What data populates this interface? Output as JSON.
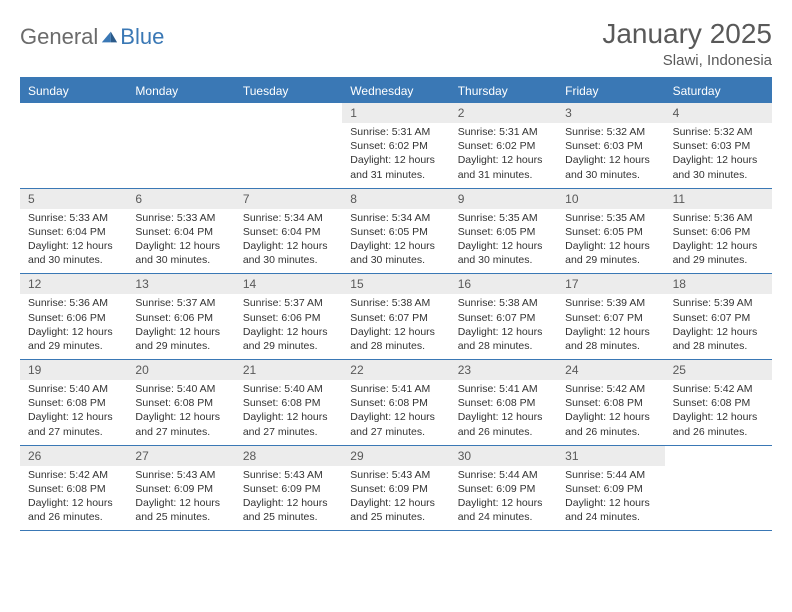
{
  "logo": {
    "text1": "General",
    "text2": "Blue"
  },
  "title": "January 2025",
  "location": "Slawi, Indonesia",
  "colors": {
    "brand_blue": "#3a78b5",
    "header_text": "#595959",
    "day_bg": "#ececec",
    "body_text": "#333333",
    "white": "#ffffff"
  },
  "weekdays": [
    "Sunday",
    "Monday",
    "Tuesday",
    "Wednesday",
    "Thursday",
    "Friday",
    "Saturday"
  ],
  "weeks": [
    [
      {
        "empty": true
      },
      {
        "empty": true
      },
      {
        "empty": true
      },
      {
        "n": "1",
        "sunrise": "Sunrise: 5:31 AM",
        "sunset": "Sunset: 6:02 PM",
        "daylight1": "Daylight: 12 hours",
        "daylight2": "and 31 minutes."
      },
      {
        "n": "2",
        "sunrise": "Sunrise: 5:31 AM",
        "sunset": "Sunset: 6:02 PM",
        "daylight1": "Daylight: 12 hours",
        "daylight2": "and 31 minutes."
      },
      {
        "n": "3",
        "sunrise": "Sunrise: 5:32 AM",
        "sunset": "Sunset: 6:03 PM",
        "daylight1": "Daylight: 12 hours",
        "daylight2": "and 30 minutes."
      },
      {
        "n": "4",
        "sunrise": "Sunrise: 5:32 AM",
        "sunset": "Sunset: 6:03 PM",
        "daylight1": "Daylight: 12 hours",
        "daylight2": "and 30 minutes."
      }
    ],
    [
      {
        "n": "5",
        "sunrise": "Sunrise: 5:33 AM",
        "sunset": "Sunset: 6:04 PM",
        "daylight1": "Daylight: 12 hours",
        "daylight2": "and 30 minutes."
      },
      {
        "n": "6",
        "sunrise": "Sunrise: 5:33 AM",
        "sunset": "Sunset: 6:04 PM",
        "daylight1": "Daylight: 12 hours",
        "daylight2": "and 30 minutes."
      },
      {
        "n": "7",
        "sunrise": "Sunrise: 5:34 AM",
        "sunset": "Sunset: 6:04 PM",
        "daylight1": "Daylight: 12 hours",
        "daylight2": "and 30 minutes."
      },
      {
        "n": "8",
        "sunrise": "Sunrise: 5:34 AM",
        "sunset": "Sunset: 6:05 PM",
        "daylight1": "Daylight: 12 hours",
        "daylight2": "and 30 minutes."
      },
      {
        "n": "9",
        "sunrise": "Sunrise: 5:35 AM",
        "sunset": "Sunset: 6:05 PM",
        "daylight1": "Daylight: 12 hours",
        "daylight2": "and 30 minutes."
      },
      {
        "n": "10",
        "sunrise": "Sunrise: 5:35 AM",
        "sunset": "Sunset: 6:05 PM",
        "daylight1": "Daylight: 12 hours",
        "daylight2": "and 29 minutes."
      },
      {
        "n": "11",
        "sunrise": "Sunrise: 5:36 AM",
        "sunset": "Sunset: 6:06 PM",
        "daylight1": "Daylight: 12 hours",
        "daylight2": "and 29 minutes."
      }
    ],
    [
      {
        "n": "12",
        "sunrise": "Sunrise: 5:36 AM",
        "sunset": "Sunset: 6:06 PM",
        "daylight1": "Daylight: 12 hours",
        "daylight2": "and 29 minutes."
      },
      {
        "n": "13",
        "sunrise": "Sunrise: 5:37 AM",
        "sunset": "Sunset: 6:06 PM",
        "daylight1": "Daylight: 12 hours",
        "daylight2": "and 29 minutes."
      },
      {
        "n": "14",
        "sunrise": "Sunrise: 5:37 AM",
        "sunset": "Sunset: 6:06 PM",
        "daylight1": "Daylight: 12 hours",
        "daylight2": "and 29 minutes."
      },
      {
        "n": "15",
        "sunrise": "Sunrise: 5:38 AM",
        "sunset": "Sunset: 6:07 PM",
        "daylight1": "Daylight: 12 hours",
        "daylight2": "and 28 minutes."
      },
      {
        "n": "16",
        "sunrise": "Sunrise: 5:38 AM",
        "sunset": "Sunset: 6:07 PM",
        "daylight1": "Daylight: 12 hours",
        "daylight2": "and 28 minutes."
      },
      {
        "n": "17",
        "sunrise": "Sunrise: 5:39 AM",
        "sunset": "Sunset: 6:07 PM",
        "daylight1": "Daylight: 12 hours",
        "daylight2": "and 28 minutes."
      },
      {
        "n": "18",
        "sunrise": "Sunrise: 5:39 AM",
        "sunset": "Sunset: 6:07 PM",
        "daylight1": "Daylight: 12 hours",
        "daylight2": "and 28 minutes."
      }
    ],
    [
      {
        "n": "19",
        "sunrise": "Sunrise: 5:40 AM",
        "sunset": "Sunset: 6:08 PM",
        "daylight1": "Daylight: 12 hours",
        "daylight2": "and 27 minutes."
      },
      {
        "n": "20",
        "sunrise": "Sunrise: 5:40 AM",
        "sunset": "Sunset: 6:08 PM",
        "daylight1": "Daylight: 12 hours",
        "daylight2": "and 27 minutes."
      },
      {
        "n": "21",
        "sunrise": "Sunrise: 5:40 AM",
        "sunset": "Sunset: 6:08 PM",
        "daylight1": "Daylight: 12 hours",
        "daylight2": "and 27 minutes."
      },
      {
        "n": "22",
        "sunrise": "Sunrise: 5:41 AM",
        "sunset": "Sunset: 6:08 PM",
        "daylight1": "Daylight: 12 hours",
        "daylight2": "and 27 minutes."
      },
      {
        "n": "23",
        "sunrise": "Sunrise: 5:41 AM",
        "sunset": "Sunset: 6:08 PM",
        "daylight1": "Daylight: 12 hours",
        "daylight2": "and 26 minutes."
      },
      {
        "n": "24",
        "sunrise": "Sunrise: 5:42 AM",
        "sunset": "Sunset: 6:08 PM",
        "daylight1": "Daylight: 12 hours",
        "daylight2": "and 26 minutes."
      },
      {
        "n": "25",
        "sunrise": "Sunrise: 5:42 AM",
        "sunset": "Sunset: 6:08 PM",
        "daylight1": "Daylight: 12 hours",
        "daylight2": "and 26 minutes."
      }
    ],
    [
      {
        "n": "26",
        "sunrise": "Sunrise: 5:42 AM",
        "sunset": "Sunset: 6:08 PM",
        "daylight1": "Daylight: 12 hours",
        "daylight2": "and 26 minutes."
      },
      {
        "n": "27",
        "sunrise": "Sunrise: 5:43 AM",
        "sunset": "Sunset: 6:09 PM",
        "daylight1": "Daylight: 12 hours",
        "daylight2": "and 25 minutes."
      },
      {
        "n": "28",
        "sunrise": "Sunrise: 5:43 AM",
        "sunset": "Sunset: 6:09 PM",
        "daylight1": "Daylight: 12 hours",
        "daylight2": "and 25 minutes."
      },
      {
        "n": "29",
        "sunrise": "Sunrise: 5:43 AM",
        "sunset": "Sunset: 6:09 PM",
        "daylight1": "Daylight: 12 hours",
        "daylight2": "and 25 minutes."
      },
      {
        "n": "30",
        "sunrise": "Sunrise: 5:44 AM",
        "sunset": "Sunset: 6:09 PM",
        "daylight1": "Daylight: 12 hours",
        "daylight2": "and 24 minutes."
      },
      {
        "n": "31",
        "sunrise": "Sunrise: 5:44 AM",
        "sunset": "Sunset: 6:09 PM",
        "daylight1": "Daylight: 12 hours",
        "daylight2": "and 24 minutes."
      },
      {
        "empty": true
      }
    ]
  ]
}
